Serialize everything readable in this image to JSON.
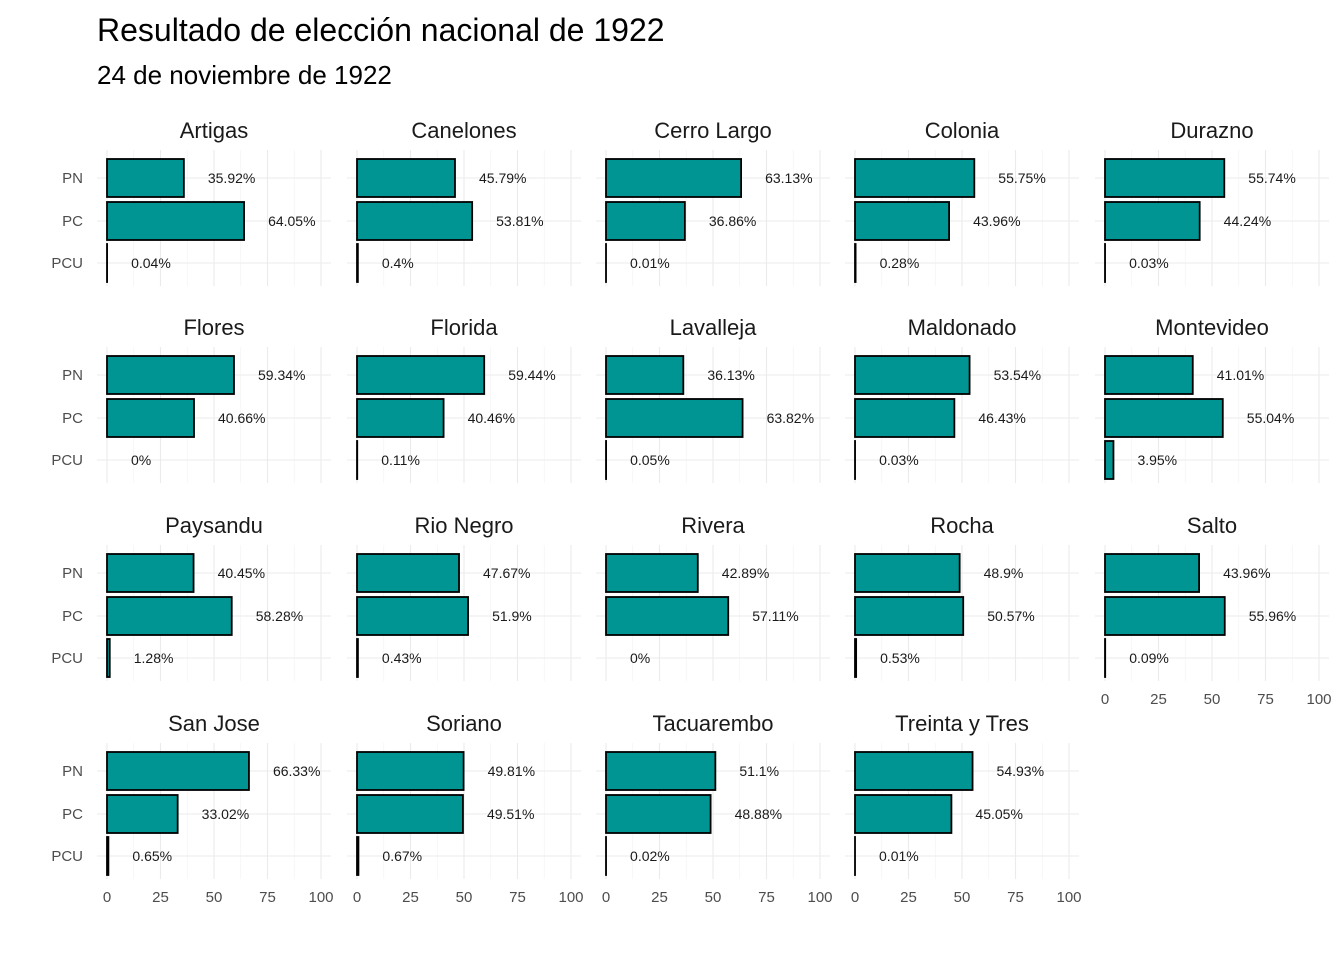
{
  "chart_data": {
    "type": "bar",
    "title": "Resultado de elección nacional de 1922",
    "subtitle": "24 de noviembre de 1922",
    "categories": [
      "PN",
      "PC",
      "PCU"
    ],
    "xlim": [
      0,
      100
    ],
    "x_ticks": [
      "0",
      "25",
      "50",
      "75",
      "100"
    ],
    "grid": true,
    "bar_color": "#009593",
    "bar_border": "#000000",
    "panels": [
      {
        "name": "Artigas",
        "values": [
          35.92,
          64.05,
          0.04
        ],
        "labels": [
          "35.92%",
          "64.05%",
          "0.04%"
        ]
      },
      {
        "name": "Canelones",
        "values": [
          45.79,
          53.81,
          0.4
        ],
        "labels": [
          "45.79%",
          "53.81%",
          "0.4%"
        ]
      },
      {
        "name": "Cerro Largo",
        "values": [
          63.13,
          36.86,
          0.01
        ],
        "labels": [
          "63.13%",
          "36.86%",
          "0.01%"
        ]
      },
      {
        "name": "Colonia",
        "values": [
          55.75,
          43.96,
          0.28
        ],
        "labels": [
          "55.75%",
          "43.96%",
          "0.28%"
        ]
      },
      {
        "name": "Durazno",
        "values": [
          55.74,
          44.24,
          0.03
        ],
        "labels": [
          "55.74%",
          "44.24%",
          "0.03%"
        ]
      },
      {
        "name": "Flores",
        "values": [
          59.34,
          40.66,
          0
        ],
        "labels": [
          "59.34%",
          "40.66%",
          "0%"
        ]
      },
      {
        "name": "Florida",
        "values": [
          59.44,
          40.46,
          0.11
        ],
        "labels": [
          "59.44%",
          "40.46%",
          "0.11%"
        ]
      },
      {
        "name": "Lavalleja",
        "values": [
          36.13,
          63.82,
          0.05
        ],
        "labels": [
          "36.13%",
          "63.82%",
          "0.05%"
        ]
      },
      {
        "name": "Maldonado",
        "values": [
          53.54,
          46.43,
          0.03
        ],
        "labels": [
          "53.54%",
          "46.43%",
          "0.03%"
        ]
      },
      {
        "name": "Montevideo",
        "values": [
          41.01,
          55.04,
          3.95
        ],
        "labels": [
          "41.01%",
          "55.04%",
          "3.95%"
        ]
      },
      {
        "name": "Paysandu",
        "values": [
          40.45,
          58.28,
          1.28
        ],
        "labels": [
          "40.45%",
          "58.28%",
          "1.28%"
        ]
      },
      {
        "name": "Rio Negro",
        "values": [
          47.67,
          51.9,
          0.43
        ],
        "labels": [
          "47.67%",
          "51.9%",
          "0.43%"
        ]
      },
      {
        "name": "Rivera",
        "values": [
          42.89,
          57.11,
          0
        ],
        "labels": [
          "42.89%",
          "57.11%",
          "0%"
        ]
      },
      {
        "name": "Rocha",
        "values": [
          48.9,
          50.57,
          0.53
        ],
        "labels": [
          "48.9%",
          "50.57%",
          "0.53%"
        ]
      },
      {
        "name": "Salto",
        "values": [
          43.96,
          55.96,
          0.09
        ],
        "labels": [
          "43.96%",
          "55.96%",
          "0.09%"
        ]
      },
      {
        "name": "San Jose",
        "values": [
          66.33,
          33.02,
          0.65
        ],
        "labels": [
          "66.33%",
          "33.02%",
          "0.65%"
        ]
      },
      {
        "name": "Soriano",
        "values": [
          49.81,
          49.51,
          0.67
        ],
        "labels": [
          "49.81%",
          "49.51%",
          "0.67%"
        ]
      },
      {
        "name": "Tacuarembo",
        "values": [
          51.1,
          48.88,
          0.02
        ],
        "labels": [
          "51.1%",
          "48.88%",
          "0.02%"
        ]
      },
      {
        "name": "Treinta y Tres",
        "values": [
          54.93,
          45.05,
          0.01
        ],
        "labels": [
          "54.93%",
          "45.05%",
          "0.01%"
        ]
      }
    ]
  }
}
